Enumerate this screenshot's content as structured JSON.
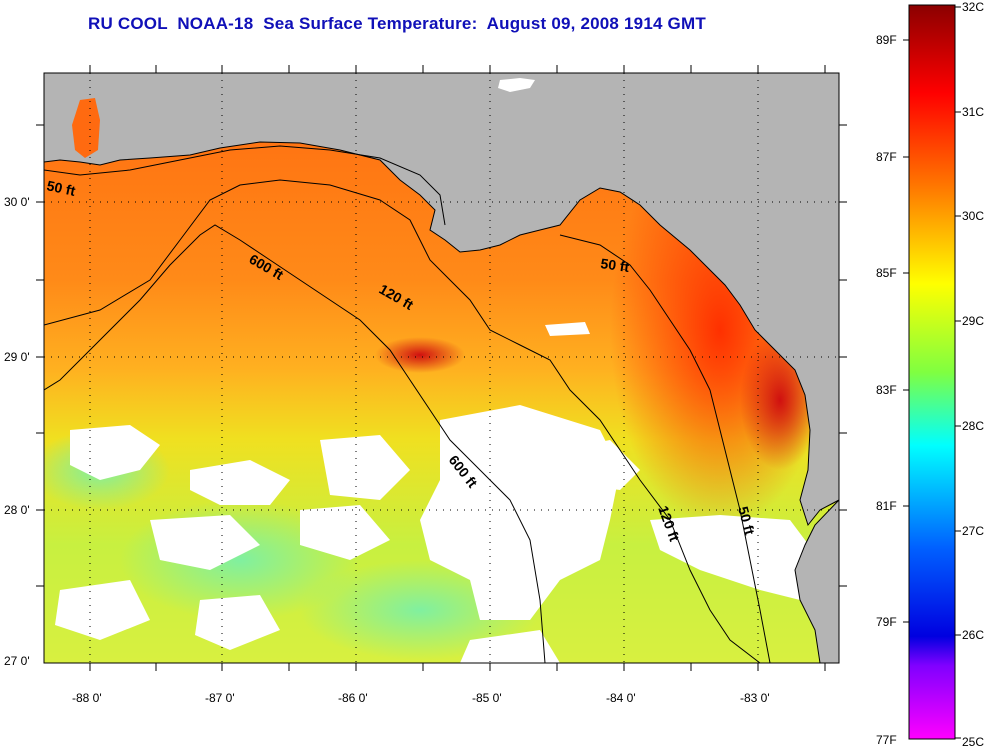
{
  "title": "RU COOL  NOAA-18  Sea Surface Temperature:  August 09, 2008 1914 GMT",
  "map": {
    "lat_ticks": [
      "30 0'",
      "29 0'",
      "28 0'",
      "27 0'"
    ],
    "lon_ticks": [
      "-88 0'",
      "-87 0'",
      "-86 0'",
      "-85 0'",
      "-84 0'",
      "-83 0'"
    ],
    "contour_labels": [
      "50 ft",
      "600 ft",
      "120 ft",
      "50 ft",
      "600 ft",
      "120 ft",
      "50 ft"
    ],
    "colors": {
      "land": "#b4b4b4",
      "cloud": "#ffffff",
      "contour": "#000000"
    }
  },
  "colorbar": {
    "celsius_labels": [
      "32C",
      "31C",
      "30C",
      "29C",
      "28C",
      "27C",
      "26C",
      "25C"
    ],
    "fahrenheit_labels": [
      "89F",
      "87F",
      "85F",
      "83F",
      "81F",
      "79F",
      "77F"
    ]
  }
}
